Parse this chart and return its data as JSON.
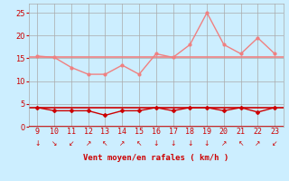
{
  "x_labels": [
    "9",
    "10",
    "11",
    "12",
    "13",
    "14",
    "15",
    "16",
    "17",
    "18",
    "19",
    "20",
    "21",
    "22",
    "23"
  ],
  "x_values": [
    9,
    10,
    11,
    12,
    13,
    14,
    15,
    16,
    17,
    18,
    19,
    20,
    21,
    22,
    23
  ],
  "rafales_values": [
    15.5,
    15.2,
    13.0,
    11.5,
    11.5,
    13.5,
    11.5,
    16.0,
    15.2,
    18.0,
    25.0,
    18.0,
    16.0,
    19.5,
    16.0
  ],
  "vent_moyen_values": [
    4.2,
    3.5,
    3.5,
    3.5,
    2.5,
    3.5,
    3.5,
    4.2,
    3.5,
    4.2,
    4.2,
    3.5,
    4.2,
    3.2,
    4.2
  ],
  "rafales_hline": 15.2,
  "vent_hline": 4.2,
  "rafales_color": "#f08080",
  "vent_color": "#cc0000",
  "hline_color_rafales": "#f08080",
  "hline_color_vent": "#cc0000",
  "bg_color": "#cceeff",
  "grid_color": "#aaaaaa",
  "xlabel": "Vent moyen/en rafales ( km/h )",
  "ylim": [
    0,
    27
  ],
  "yticks": [
    0,
    5,
    10,
    15,
    20,
    25
  ],
  "xlim": [
    8.5,
    23.5
  ],
  "xlabel_color": "#cc0000",
  "tick_color": "#cc0000",
  "arrows": [
    {
      "x": 9,
      "sym": "↓"
    },
    {
      "x": 10,
      "sym": "↘"
    },
    {
      "x": 11,
      "sym": "↙"
    },
    {
      "x": 12,
      "sym": "↗"
    },
    {
      "x": 13,
      "sym": "↖"
    },
    {
      "x": 14,
      "sym": "↗"
    },
    {
      "x": 15,
      "sym": "↖"
    },
    {
      "x": 16,
      "sym": "↓"
    },
    {
      "x": 17,
      "sym": "↓"
    },
    {
      "x": 18,
      "sym": "↓"
    },
    {
      "x": 19,
      "sym": "↓"
    },
    {
      "x": 20,
      "sym": "↗"
    },
    {
      "x": 21,
      "sym": "↖"
    },
    {
      "x": 22,
      "sym": "↗"
    },
    {
      "x": 23,
      "sym": "↙"
    }
  ]
}
